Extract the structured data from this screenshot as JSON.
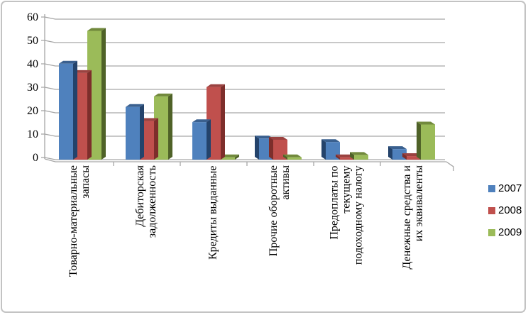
{
  "chart_data": {
    "type": "bar",
    "style": "3d-clustered-column",
    "title": "",
    "xlabel": "",
    "ylabel": "",
    "ylim": [
      0,
      60
    ],
    "ytick_step": 10,
    "grid": true,
    "legend_position": "right",
    "categories": [
      "Товарно-материальные\nзапасы",
      "Дебиторская\nзадолженность",
      "Кредиты выданные",
      "Прочие оборотные\nактивы",
      "Предоплаты по\nтекущему\nподоходному налогу",
      "Денежные средства и\nих эквиваленты"
    ],
    "series": [
      {
        "name": "2007",
        "color": "#4F81BD",
        "color_side": "#24436B",
        "color_top": "#3A608F",
        "values": [
          41,
          22.5,
          16,
          9,
          7.5,
          4.5
        ]
      },
      {
        "name": "2008",
        "color": "#C0504D",
        "color_side": "#7D2E2B",
        "color_top": "#9A4240",
        "values": [
          37,
          16.5,
          31,
          8.5,
          1,
          1.5
        ]
      },
      {
        "name": "2009",
        "color": "#9BBB59",
        "color_side": "#4F6228",
        "color_top": "#71893C",
        "values": [
          55,
          27,
          1,
          1,
          2,
          15
        ]
      }
    ],
    "colors": {
      "grid": "#A6A6A6",
      "axis": "#A6A6A6",
      "text": "#000000",
      "border": "#C3C3C3"
    }
  }
}
